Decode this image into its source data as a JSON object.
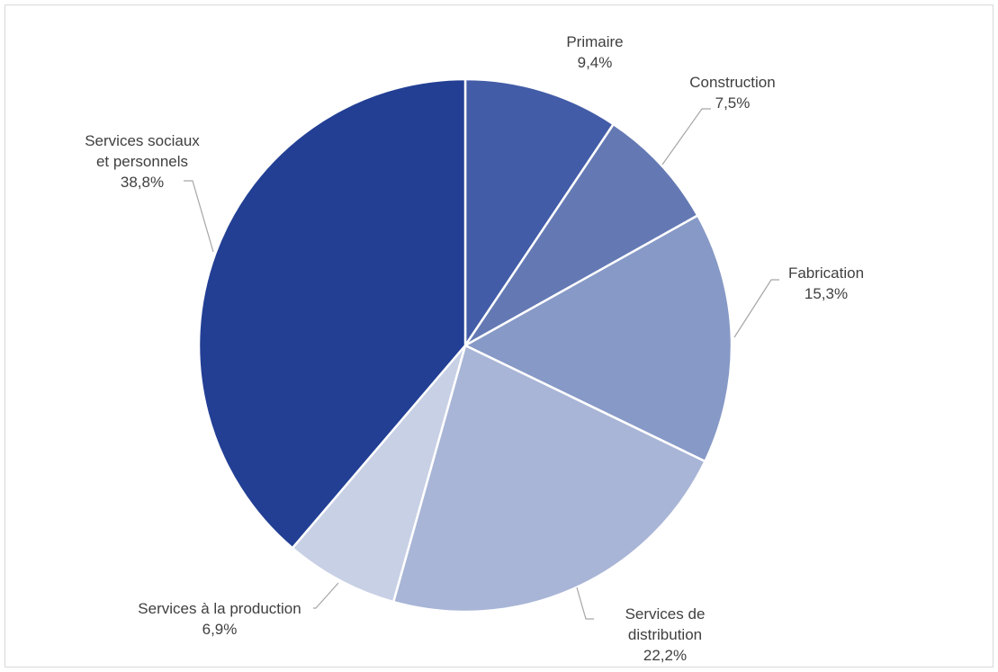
{
  "chart_data": {
    "type": "pie",
    "title": "",
    "slices": [
      {
        "label": "Primaire",
        "label_lines": [
          "Primaire"
        ],
        "value": 9.4,
        "value_label": "9,4%",
        "color": "#435ca7"
      },
      {
        "label": "Construction",
        "label_lines": [
          "Construction"
        ],
        "value": 7.5,
        "value_label": "7,5%",
        "color": "#6479b4"
      },
      {
        "label": "Fabrication",
        "label_lines": [
          "Fabrication"
        ],
        "value": 15.3,
        "value_label": "15,3%",
        "color": "#8799c6"
      },
      {
        "label": "Services de distribution",
        "label_lines": [
          "Services de",
          "distribution"
        ],
        "value": 22.2,
        "value_label": "22,2%",
        "color": "#a8b5d6"
      },
      {
        "label": "Services à la production",
        "label_lines": [
          "Services à la production"
        ],
        "value": 6.9,
        "value_label": "6,9%",
        "color": "#c8d0e5"
      },
      {
        "label": "Services sociaux et personnels",
        "label_lines": [
          "Services sociaux",
          "et personnels"
        ],
        "value": 38.8,
        "value_label": "38,8%",
        "color": "#223f94"
      }
    ]
  }
}
